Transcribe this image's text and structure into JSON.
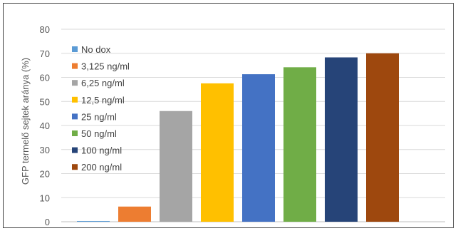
{
  "chart_data": {
    "type": "bar",
    "title": "",
    "xlabel": "",
    "ylabel": "GFP termelő sejtek aránya (%)",
    "ylim": [
      0,
      80
    ],
    "yticks": [
      0,
      10,
      20,
      30,
      40,
      50,
      60,
      70,
      80
    ],
    "grid": true,
    "legend_position": "top-left",
    "categories": [
      "No dox",
      "3,125 ng/ml",
      "6,25 ng/ml",
      "12,5 ng/ml",
      "25 ng/ml",
      "50 ng/ml",
      "100 ng/ml",
      "200 ng/ml"
    ],
    "values": [
      0.3,
      6.3,
      46.0,
      57.5,
      61.3,
      64.2,
      68.3,
      70.0
    ],
    "colors": [
      "#5B9BD5",
      "#ED7D31",
      "#A5A5A5",
      "#FFC000",
      "#4472C4",
      "#70AD47",
      "#264478",
      "#9E480E"
    ]
  }
}
